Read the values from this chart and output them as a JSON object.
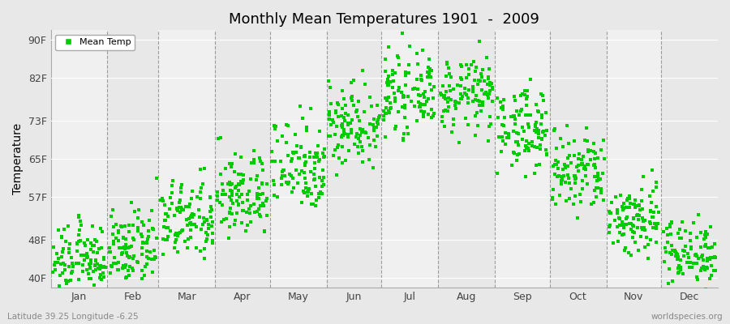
{
  "title": "Monthly Mean Temperatures 1901  -  2009",
  "ylabel": "Temperature",
  "xlabel_bottom_left": "Latitude 39.25 Longitude -6.25",
  "xlabel_bottom_right": "worldspecies.org",
  "legend_label": "Mean Temp",
  "dot_color": "#00CC00",
  "dot_size": 5,
  "background_color": "#E8E8E8",
  "plot_bg_color": "#F0F0F0",
  "yticks": [
    40,
    48,
    57,
    65,
    73,
    82,
    90
  ],
  "ytick_labels": [
    "40F",
    "48F",
    "57F",
    "65F",
    "73F",
    "82F",
    "90F"
  ],
  "ylim": [
    38,
    92
  ],
  "months": [
    "Jan",
    "Feb",
    "Mar",
    "Apr",
    "May",
    "Jun",
    "Jul",
    "Aug",
    "Sep",
    "Oct",
    "Nov",
    "Dec"
  ],
  "month_days": [
    31,
    28,
    31,
    30,
    31,
    30,
    31,
    31,
    30,
    31,
    30,
    31
  ],
  "year_start": 1901,
  "year_end": 2009,
  "mean_temps_f": [
    44.0,
    46.0,
    52.0,
    57.5,
    64.0,
    72.5,
    78.5,
    78.5,
    71.5,
    62.0,
    52.5,
    45.5
  ],
  "spread_f": [
    3.5,
    3.8,
    4.2,
    4.5,
    5.0,
    4.5,
    3.8,
    3.8,
    4.2,
    4.5,
    4.0,
    3.5
  ]
}
